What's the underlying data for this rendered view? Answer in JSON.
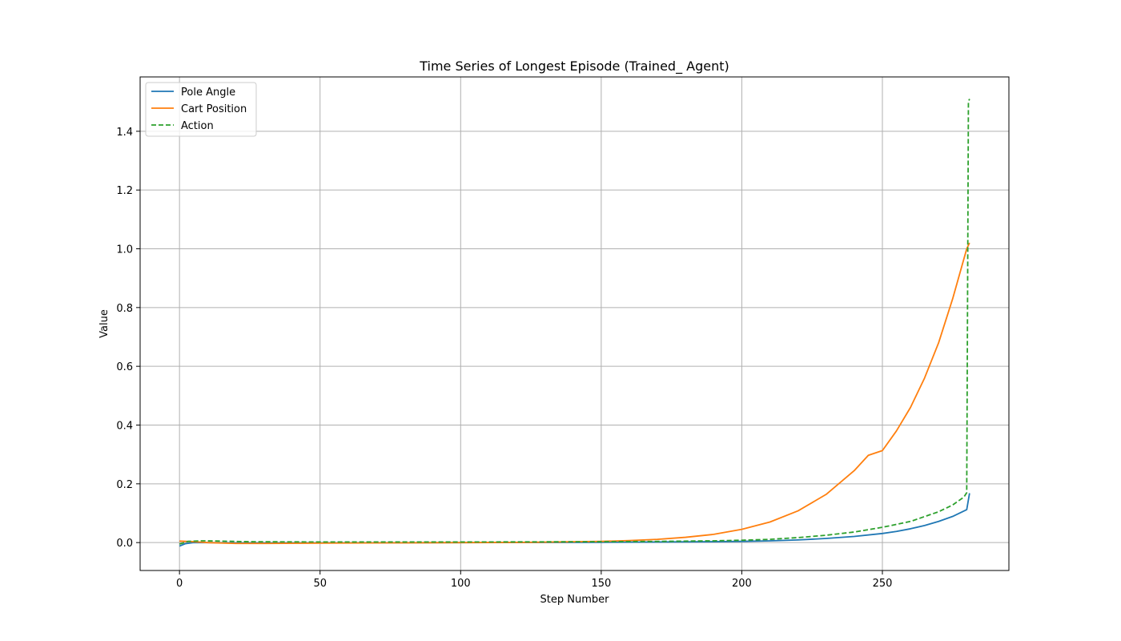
{
  "chart_data": {
    "type": "line",
    "title": "Time Series of Longest Episode (Trained_ Agent)",
    "xlabel": "Step Number",
    "ylabel": "Value",
    "xlim": [
      -14,
      295
    ],
    "ylim": [
      -0.095,
      1.585
    ],
    "xticks": [
      0,
      50,
      100,
      150,
      200,
      250
    ],
    "yticks": [
      0.0,
      0.2,
      0.4,
      0.6,
      0.8,
      1.0,
      1.2,
      1.4
    ],
    "xtick_labels": [
      "0",
      "50",
      "100",
      "150",
      "200",
      "250"
    ],
    "ytick_labels": [
      "0.0",
      "0.2",
      "0.4",
      "0.6",
      "0.8",
      "1.0",
      "1.2",
      "1.4"
    ],
    "grid": true,
    "legend_position": "top-left",
    "series": [
      {
        "name": "Pole Angle",
        "color": "#1f77b4",
        "dash": "solid",
        "x": [
          0,
          2,
          5,
          10,
          20,
          30,
          50,
          100,
          150,
          170,
          190,
          200,
          210,
          220,
          230,
          240,
          250,
          255,
          260,
          265,
          270,
          275,
          280,
          281
        ],
        "y": [
          -0.012,
          -0.004,
          0.0,
          0.0,
          -0.001,
          -0.001,
          -0.001,
          0.0,
          0.001,
          0.002,
          0.003,
          0.004,
          0.006,
          0.009,
          0.014,
          0.021,
          0.031,
          0.038,
          0.047,
          0.058,
          0.072,
          0.089,
          0.112,
          0.168
        ]
      },
      {
        "name": "Cart Position",
        "color": "#ff7f0e",
        "dash": "solid",
        "x": [
          0,
          5,
          10,
          20,
          30,
          50,
          75,
          100,
          125,
          150,
          160,
          170,
          180,
          190,
          200,
          210,
          220,
          230,
          240,
          245,
          250,
          255,
          260,
          265,
          270,
          275,
          280,
          281
        ],
        "y": [
          0.005,
          0.003,
          0.0,
          -0.003,
          -0.003,
          -0.002,
          -0.001,
          0.0,
          0.001,
          0.004,
          0.007,
          0.011,
          0.018,
          0.028,
          0.045,
          0.07,
          0.108,
          0.164,
          0.245,
          0.297,
          0.313,
          0.38,
          0.46,
          0.56,
          0.68,
          0.83,
          1.0,
          1.02
        ]
      },
      {
        "name": "Action",
        "color": "#2ca02c",
        "dash": "dashed",
        "x": [
          0,
          3,
          8,
          15,
          25,
          50,
          100,
          150,
          170,
          190,
          200,
          210,
          220,
          230,
          240,
          250,
          260,
          270,
          275,
          279,
          280,
          280.6,
          281
        ],
        "y": [
          -0.005,
          0.004,
          0.006,
          0.005,
          0.003,
          0.002,
          0.002,
          0.003,
          0.004,
          0.006,
          0.008,
          0.011,
          0.017,
          0.025,
          0.036,
          0.052,
          0.072,
          0.105,
          0.128,
          0.155,
          0.17,
          1.5,
          1.51
        ]
      }
    ]
  }
}
